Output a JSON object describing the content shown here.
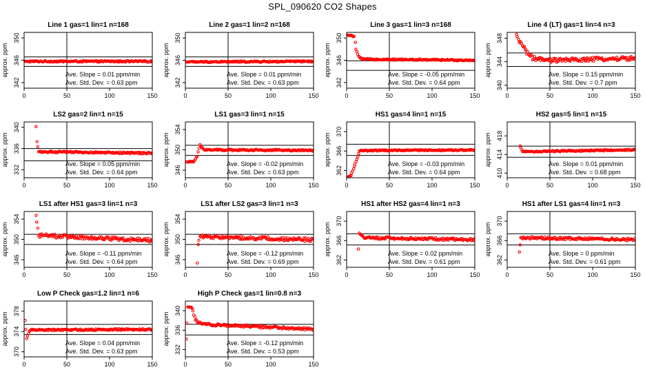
{
  "page_title": "SPL_090620  CO2 Shapes",
  "chart_data": [
    {
      "type": "scatter",
      "title": "Line 1 gas=1 lin=1 n=168",
      "xlabel": "",
      "ylabel": "approx. ppm",
      "xlim": [
        0,
        150
      ],
      "ylim": [
        341,
        351
      ],
      "x_ticks": [
        0,
        50,
        100,
        150
      ],
      "y_ticks": [
        342,
        346,
        350
      ],
      "hlines": [
        344.9,
        346.6
      ],
      "vline": 50,
      "annotation_slope": "Ave. Slope = 0.01 ppm/min",
      "annotation_sd": "Ave. Std. Dev. = 0.63 ppm",
      "series_shape": [
        [
          1,
          345.8
        ],
        [
          150,
          345.8
        ]
      ],
      "jitter": 0.12,
      "marker": "o"
    },
    {
      "type": "scatter",
      "title": "Line 2 gas=1 lin=2 n=168",
      "xlabel": "",
      "ylabel": "approx. ppm",
      "xlim": [
        0,
        150
      ],
      "ylim": [
        341,
        351
      ],
      "x_ticks": [
        0,
        50,
        100,
        150
      ],
      "y_ticks": [
        342,
        346,
        350
      ],
      "hlines": [
        344.9,
        346.6
      ],
      "vline": 50,
      "annotation_slope": "Ave. Slope = 0.01 ppm/min",
      "annotation_sd": "Ave. Std. Dev. = 0.63 ppm",
      "series_shape": [
        [
          1,
          345.7
        ],
        [
          150,
          345.8
        ]
      ],
      "jitter": 0.12,
      "marker": "o"
    },
    {
      "type": "scatter",
      "title": "Line 3 gas=1 lin=3 n=168",
      "xlabel": "",
      "ylabel": "approx. ppm",
      "xlim": [
        0,
        150
      ],
      "ylim": [
        341,
        351
      ],
      "x_ticks": [
        0,
        50,
        100,
        150
      ],
      "y_ticks": [
        342,
        346,
        350
      ],
      "hlines": [
        344.2,
        345.9
      ],
      "vline": 50,
      "annotation_slope": "Ave. Slope = -0.05 ppm/min",
      "annotation_sd": "Ave. Std. Dev. = 0.64 ppm",
      "series_shape": [
        [
          1,
          350.5
        ],
        [
          9,
          350.3
        ],
        [
          11,
          348.0
        ],
        [
          14,
          346.6
        ],
        [
          18,
          346.2
        ],
        [
          150,
          346.0
        ]
      ],
      "jitter": 0.12,
      "marker": "o"
    },
    {
      "type": "scatter",
      "title": "Line 4 (LT) gas=1 lin=4 n=3",
      "xlabel": "",
      "ylabel": "approx. ppm",
      "xlim": [
        0,
        150
      ],
      "ylim": [
        339.5,
        349
      ],
      "x_ticks": [
        0,
        50,
        100,
        150
      ],
      "y_ticks": [
        340,
        344,
        348
      ],
      "hlines": [
        343.2,
        345.5
      ],
      "vline": 50,
      "annotation_slope": "Ave. Slope = 0.15 ppm/min",
      "annotation_sd": "Ave. Std. Dev. = 0.7 ppm",
      "series_shape": [
        [
          11,
          348.6
        ],
        [
          14,
          347.4
        ],
        [
          17,
          347.2
        ],
        [
          24,
          345.4
        ],
        [
          30,
          344.6
        ],
        [
          45,
          344.2
        ],
        [
          150,
          344.6
        ]
      ],
      "jitter": 0.35,
      "marker": "o"
    },
    {
      "type": "scatter",
      "title": "LS2 gas=2 lin=1 n=15",
      "xlabel": "",
      "ylabel": "approx. ppm",
      "xlim": [
        0,
        150
      ],
      "ylim": [
        330.5,
        341
      ],
      "x_ticks": [
        0,
        50,
        100,
        150
      ],
      "y_ticks": [
        332,
        336,
        340
      ],
      "hlines": [
        333.7,
        336.0
      ],
      "vline": 50,
      "annotation_slope": "Ave. Slope = 0.05 ppm/min",
      "annotation_sd": "Ave. Std. Dev. = 0.64 ppm",
      "series_shape": [
        [
          14,
          340.1
        ],
        [
          15,
          337.3
        ],
        [
          17,
          335.4
        ],
        [
          150,
          335.1
        ]
      ],
      "jitter": 0.15,
      "marker": "o"
    },
    {
      "type": "scatter",
      "title": "LS1 gas=3 lin=1 n=15",
      "xlabel": "",
      "ylabel": "approx. ppm",
      "xlim": [
        0,
        150
      ],
      "ylim": [
        344.5,
        355.5
      ],
      "x_ticks": [
        0,
        50,
        100,
        150
      ],
      "y_ticks": [
        346,
        350,
        354
      ],
      "hlines": [
        348.9,
        350.9
      ],
      "vline": 50,
      "annotation_slope": "Ave. Slope = -0.02 ppm/min",
      "annotation_sd": "Ave. Std. Dev. = 0.63 ppm",
      "series_shape": [
        [
          1,
          347.6
        ],
        [
          10,
          347.6
        ],
        [
          14,
          348.8
        ],
        [
          17,
          351.1
        ],
        [
          22,
          350.0
        ],
        [
          150,
          349.9
        ]
      ],
      "jitter": 0.15,
      "marker": "o"
    },
    {
      "type": "scatter",
      "title": "HS1 gas=4 lin=1 n=15",
      "xlabel": "",
      "ylabel": "approx. ppm",
      "xlim": [
        0,
        150
      ],
      "ylim": [
        360.5,
        372
      ],
      "x_ticks": [
        0,
        50,
        100,
        150
      ],
      "y_ticks": [
        362,
        366,
        370
      ],
      "hlines": [
        365.1,
        367.4
      ],
      "vline": 50,
      "annotation_slope": "Ave. Slope = -0.03 ppm/min",
      "annotation_sd": "Ave. Std. Dev. = 0.64 ppm",
      "series_shape": [
        [
          1,
          360.6
        ],
        [
          5,
          361.0
        ],
        [
          8,
          362.3
        ],
        [
          12,
          364.3
        ],
        [
          15,
          366.1
        ],
        [
          150,
          366.2
        ]
      ],
      "jitter": 0.12,
      "marker": "o"
    },
    {
      "type": "scatter",
      "title": "HS2 gas=5 lin=1 n=15",
      "xlabel": "",
      "ylabel": "approx. ppm",
      "xlim": [
        0,
        150
      ],
      "ylim": [
        409,
        421
      ],
      "x_ticks": [
        0,
        50,
        100,
        150
      ],
      "y_ticks": [
        410,
        414,
        418
      ],
      "hlines": [
        413.4,
        415.8
      ],
      "vline": 50,
      "annotation_slope": "Ave. Slope = 0.01 ppm/min",
      "annotation_sd": "Ave. Std. Dev. = 0.68 ppm",
      "series_shape": [
        [
          15,
          415.8
        ],
        [
          18,
          414.6
        ],
        [
          150,
          415.0
        ]
      ],
      "jitter": 0.15,
      "marker": "o"
    },
    {
      "type": "scatter",
      "title": "LS1 after HS1 gas=3 lin=1 n=3",
      "xlabel": "",
      "ylabel": "approx. ppm",
      "xlim": [
        0,
        150
      ],
      "ylim": [
        344.5,
        355.5
      ],
      "x_ticks": [
        0,
        50,
        100,
        150
      ],
      "y_ticks": [
        346,
        350,
        354
      ],
      "hlines": [
        349.0,
        351.0
      ],
      "vline": 50,
      "annotation_slope": "Ave. Slope = -0.11 ppm/min",
      "annotation_sd": "Ave. Std. Dev. = 0.64 ppm",
      "series_shape": [
        [
          14,
          354.8
        ],
        [
          17,
          350.8
        ],
        [
          150,
          349.8
        ]
      ],
      "jitter": 0.35,
      "marker": "o"
    },
    {
      "type": "scatter",
      "title": "LS1 after LS2 gas=3 lin=1 n=3",
      "xlabel": "",
      "ylabel": "approx. ppm",
      "xlim": [
        0,
        150
      ],
      "ylim": [
        344.5,
        355.5
      ],
      "x_ticks": [
        0,
        50,
        100,
        150
      ],
      "y_ticks": [
        346,
        350,
        354
      ],
      "hlines": [
        349.0,
        351.0
      ],
      "vline": 50,
      "annotation_slope": "Ave. Slope = -0.12 ppm/min",
      "annotation_sd": "Ave. Std. Dev. = 0.69 ppm",
      "series_shape": [
        [
          14,
          345.4
        ],
        [
          15,
          349.0
        ],
        [
          17,
          350.6
        ],
        [
          150,
          349.9
        ]
      ],
      "jitter": 0.35,
      "marker": "o"
    },
    {
      "type": "scatter",
      "title": "HS1 after HS2 gas=4 lin=1 n=3",
      "xlabel": "",
      "ylabel": "approx. ppm",
      "xlim": [
        0,
        150
      ],
      "ylim": [
        360.5,
        372
      ],
      "x_ticks": [
        0,
        50,
        100,
        150
      ],
      "y_ticks": [
        362,
        366,
        370
      ],
      "hlines": [
        365.1,
        367.4
      ],
      "vline": 50,
      "annotation_slope": "Ave. Slope = 0.02 ppm/min",
      "annotation_sd": "Ave. Std. Dev. = 0.61 ppm",
      "series_shape": [
        [
          14,
          364.3
        ],
        [
          15,
          367.5
        ],
        [
          20,
          366.6
        ],
        [
          150,
          366.2
        ]
      ],
      "jitter": 0.25,
      "marker": "o"
    },
    {
      "type": "scatter",
      "title": "HS1 after LS1 gas=4 lin=1 n=3",
      "xlabel": "",
      "ylabel": "approx. ppm",
      "xlim": [
        0,
        150
      ],
      "ylim": [
        360.5,
        372
      ],
      "x_ticks": [
        0,
        50,
        100,
        150
      ],
      "y_ticks": [
        362,
        366,
        370
      ],
      "hlines": [
        365.1,
        367.4
      ],
      "vline": 50,
      "annotation_slope": "Ave. Slope = 0 ppm/min",
      "annotation_sd": "Ave. Std. Dev. = 0.61 ppm",
      "series_shape": [
        [
          14,
          363.7
        ],
        [
          16,
          366.6
        ],
        [
          150,
          366.2
        ]
      ],
      "jitter": 0.25,
      "marker": "o"
    },
    {
      "type": "scatter",
      "title": "Low P Check gas=1.2 lin=1 n=6",
      "xlabel": "",
      "ylabel": "approx. ppm",
      "xlim": [
        0,
        150
      ],
      "ylim": [
        369,
        380
      ],
      "x_ticks": [
        0,
        50,
        100,
        150
      ],
      "y_ticks": [
        370,
        374,
        378
      ],
      "hlines": [
        373.4,
        375.4
      ],
      "vline": 50,
      "annotation_slope": "Ave. Slope = 0.04 ppm/min",
      "annotation_sd": "Ave. Std. Dev. = 0.63 ppm",
      "series_shape": [
        [
          1,
          376.2
        ],
        [
          3,
          372.6
        ],
        [
          5,
          373.6
        ],
        [
          7,
          374.3
        ],
        [
          150,
          374.4
        ]
      ],
      "jitter": 0.15,
      "marker": "o"
    },
    {
      "type": "scatter",
      "title": "High P Check gas=1 lin=0.8 n=3",
      "xlabel": "",
      "ylabel": "approx. ppm",
      "xlim": [
        0,
        150
      ],
      "ylim": [
        330.5,
        342
      ],
      "x_ticks": [
        0,
        50,
        100,
        150
      ],
      "y_ticks": [
        332,
        336,
        340
      ],
      "hlines": [
        335.0,
        337.2
      ],
      "vline": 50,
      "annotation_slope": "Ave. Slope = -0.12 ppm/min",
      "annotation_sd": "Ave. Std. Dev. = 0.53 ppm",
      "series_shape": [
        [
          1,
          334.2
        ],
        [
          3,
          340.8
        ],
        [
          8,
          340.4
        ],
        [
          12,
          338.0
        ],
        [
          20,
          337.2
        ],
        [
          150,
          336.2
        ]
      ],
      "jitter": 0.25,
      "marker": "o"
    }
  ]
}
